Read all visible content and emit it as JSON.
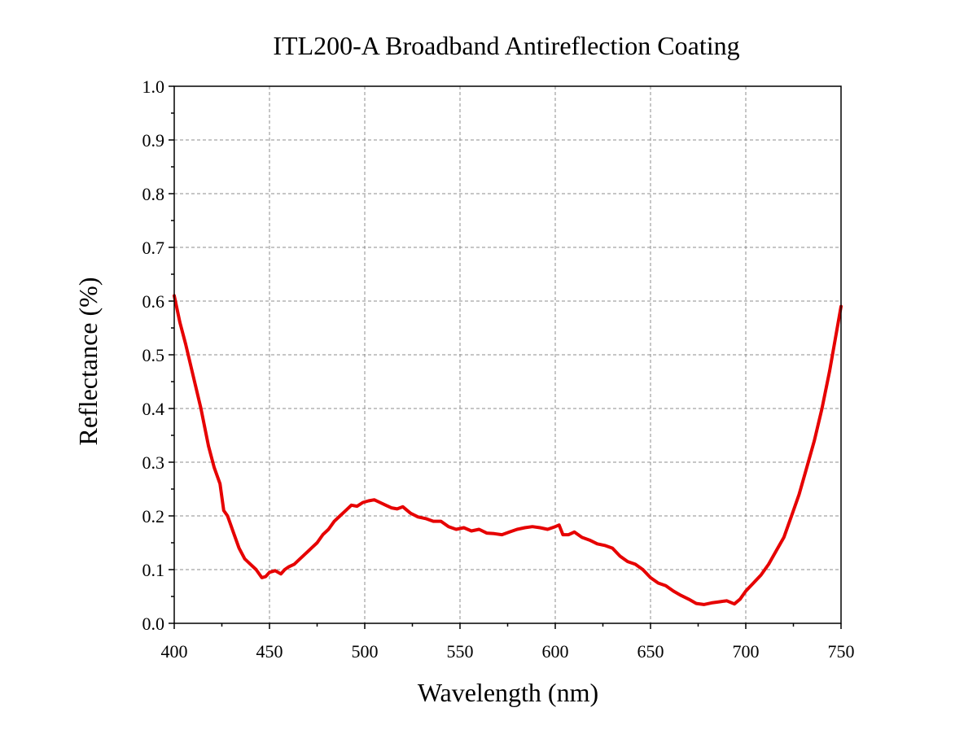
{
  "chart_data": {
    "type": "line",
    "title": "ITL200-A Broadband Antireflection Coating",
    "xlabel": "Wavelength (nm)",
    "ylabel": "Reflectance (%)",
    "xlim": [
      400,
      750
    ],
    "ylim": [
      0.0,
      1.0
    ],
    "x_ticks": [
      400,
      450,
      500,
      550,
      600,
      650,
      700,
      750
    ],
    "x_tick_labels": [
      "400",
      "450",
      "500",
      "550",
      "600",
      "650",
      "700",
      "750"
    ],
    "y_ticks": [
      0.0,
      0.1,
      0.2,
      0.3,
      0.4,
      0.5,
      0.6,
      0.7,
      0.8,
      0.9,
      1.0
    ],
    "y_tick_labels": [
      "0.0",
      "0.1",
      "0.2",
      "0.3",
      "0.4",
      "0.5",
      "0.6",
      "0.7",
      "0.8",
      "0.9",
      "1.0"
    ],
    "grid": true,
    "legend": "none",
    "colors": {
      "series": "#e60000",
      "grid": "#8c8c8c",
      "axes": "#000000"
    },
    "series": [
      {
        "x": [
          400,
          403,
          406,
          410,
          414,
          418,
          421,
          424,
          426,
          428,
          431,
          434,
          437,
          440,
          443,
          446,
          448,
          450,
          453,
          456,
          458,
          460,
          463,
          466,
          469,
          472,
          475,
          478,
          481,
          484,
          487,
          490,
          493,
          496,
          499,
          502,
          505,
          508,
          511,
          514,
          517,
          520,
          524,
          528,
          532,
          536,
          540,
          544,
          548,
          552,
          556,
          560,
          564,
          568,
          572,
          576,
          580,
          584,
          588,
          592,
          596,
          600,
          602,
          604,
          607,
          610,
          614,
          618,
          622,
          626,
          630,
          634,
          638,
          642,
          646,
          650,
          654,
          658,
          662,
          666,
          670,
          674,
          678,
          682,
          686,
          690,
          694,
          697,
          700,
          704,
          708,
          712,
          716,
          720,
          724,
          728,
          732,
          736,
          740,
          744,
          747,
          750
        ],
        "y": [
          0.61,
          0.56,
          0.52,
          0.46,
          0.4,
          0.33,
          0.29,
          0.26,
          0.21,
          0.2,
          0.17,
          0.14,
          0.12,
          0.11,
          0.1,
          0.085,
          0.087,
          0.095,
          0.098,
          0.092,
          0.1,
          0.105,
          0.11,
          0.12,
          0.13,
          0.14,
          0.15,
          0.165,
          0.175,
          0.19,
          0.2,
          0.21,
          0.22,
          0.218,
          0.225,
          0.228,
          0.23,
          0.225,
          0.22,
          0.215,
          0.213,
          0.217,
          0.205,
          0.198,
          0.195,
          0.19,
          0.19,
          0.18,
          0.175,
          0.178,
          0.172,
          0.175,
          0.168,
          0.167,
          0.165,
          0.17,
          0.175,
          0.178,
          0.18,
          0.178,
          0.175,
          0.18,
          0.183,
          0.165,
          0.165,
          0.17,
          0.16,
          0.155,
          0.148,
          0.145,
          0.14,
          0.125,
          0.115,
          0.11,
          0.1,
          0.085,
          0.075,
          0.07,
          0.06,
          0.052,
          0.045,
          0.037,
          0.035,
          0.038,
          0.04,
          0.042,
          0.036,
          0.045,
          0.06,
          0.075,
          0.09,
          0.11,
          0.135,
          0.16,
          0.2,
          0.24,
          0.29,
          0.34,
          0.4,
          0.47,
          0.53,
          0.59
        ]
      }
    ]
  }
}
